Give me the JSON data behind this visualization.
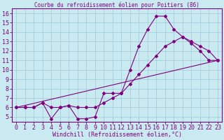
{
  "title": "Courbe du refroidissement éolien pour Poitiers (86)",
  "xlabel": "Windchill (Refroidissement éolien,°C)",
  "bg_color": "#c8eaf0",
  "line_color": "#800080",
  "grid_color": "#a0c8d8",
  "xlim": [
    -0.5,
    23.5
  ],
  "ylim": [
    4.5,
    16.5
  ],
  "xticks": [
    0,
    1,
    2,
    3,
    4,
    5,
    6,
    7,
    8,
    9,
    10,
    11,
    12,
    13,
    14,
    15,
    16,
    17,
    18,
    19,
    20,
    21,
    22,
    23
  ],
  "yticks": [
    5,
    6,
    7,
    8,
    9,
    10,
    11,
    12,
    13,
    14,
    15,
    16
  ],
  "line1_x": [
    0,
    1,
    2,
    3,
    4,
    5,
    6,
    7,
    8,
    9,
    10,
    11,
    12,
    13,
    14,
    15,
    16,
    17,
    18,
    19,
    20,
    21,
    22,
    23
  ],
  "line1_y": [
    6.0,
    6.0,
    6.0,
    6.5,
    6.0,
    6.0,
    6.2,
    6.0,
    6.0,
    6.0,
    6.5,
    7.0,
    7.5,
    8.5,
    9.5,
    10.5,
    11.5,
    12.5,
    13.0,
    13.5,
    13.0,
    12.5,
    12.0,
    11.0
  ],
  "line2_x": [
    0,
    1,
    2,
    3,
    4,
    5,
    6,
    7,
    8,
    9,
    10,
    11,
    12,
    13,
    14,
    15,
    16,
    17,
    18,
    19,
    20,
    21,
    22,
    23
  ],
  "line2_y": [
    6.0,
    6.0,
    6.0,
    6.5,
    4.8,
    6.0,
    6.2,
    4.8,
    4.8,
    5.0,
    7.5,
    7.5,
    7.5,
    10.0,
    12.5,
    14.3,
    15.7,
    15.7,
    14.3,
    13.5,
    12.8,
    12.0,
    11.0,
    11.0
  ],
  "line3_x": [
    0,
    23
  ],
  "line3_y": [
    6.0,
    11.0
  ],
  "font_color": "#800080",
  "font_size": 6,
  "title_font_size": 5.5,
  "marker": "D",
  "markersize": 2.0
}
